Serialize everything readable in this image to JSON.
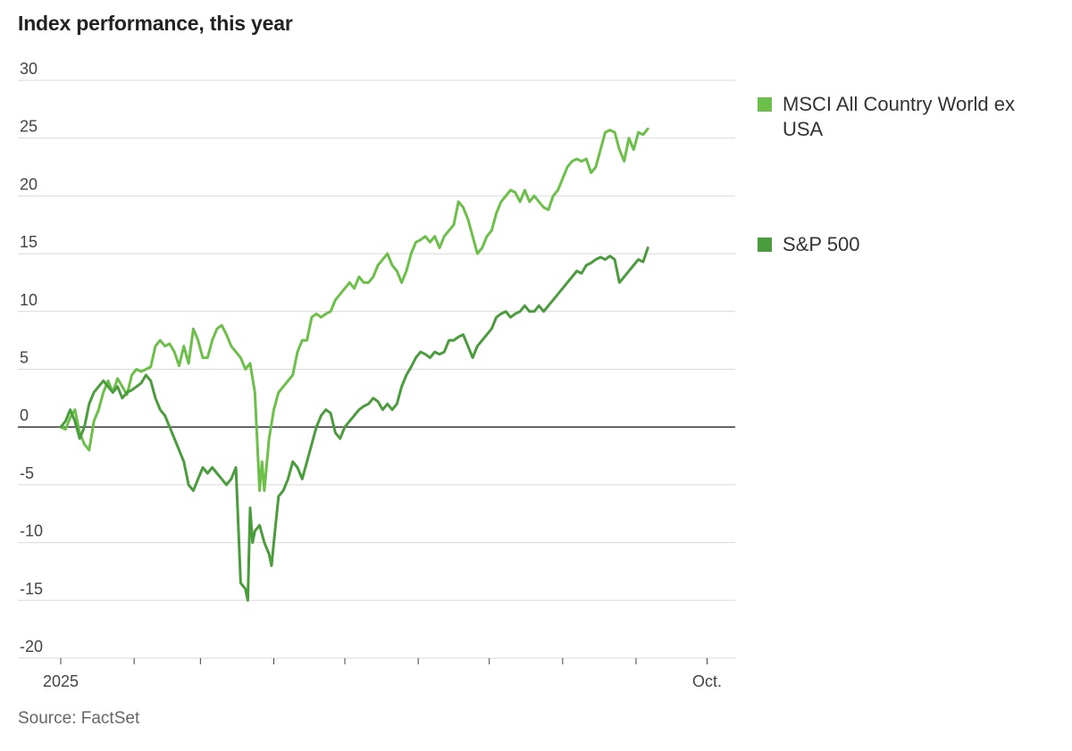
{
  "title": "Index performance, this year",
  "source": "Source: FactSet",
  "chart_data": {
    "type": "line",
    "title": "Index performance, this year",
    "xlabel": "",
    "ylabel": "",
    "unit": "percent change since start of 2025",
    "ylim": [
      -20,
      30
    ],
    "yticks": [
      30,
      25,
      20,
      15,
      10,
      5,
      0,
      -5,
      -10,
      -15,
      -20
    ],
    "xlim": [
      0,
      283
    ],
    "x_unit": "days since 2025-01-01",
    "xtick_labels": [
      {
        "x": 0,
        "label": "2025"
      },
      {
        "x": 273,
        "label": "Oct."
      }
    ],
    "month_ticks": [
      0,
      31,
      59,
      90,
      120,
      151,
      181,
      212,
      243,
      273
    ],
    "series": [
      {
        "name": "MSCI All Country World ex USA",
        "color": "#6cc04a",
        "points": [
          [
            0,
            0
          ],
          [
            2,
            -0.2
          ],
          [
            4,
            0.8
          ],
          [
            6,
            1.5
          ],
          [
            8,
            -0.5
          ],
          [
            10,
            -1.5
          ],
          [
            12,
            -2
          ],
          [
            14,
            0.5
          ],
          [
            16,
            1.5
          ],
          [
            18,
            3
          ],
          [
            20,
            4
          ],
          [
            22,
            3
          ],
          [
            24,
            4.2
          ],
          [
            26,
            3.5
          ],
          [
            28,
            2.8
          ],
          [
            30,
            4.5
          ],
          [
            32,
            5
          ],
          [
            34,
            4.8
          ],
          [
            36,
            5
          ],
          [
            38,
            5.2
          ],
          [
            40,
            7
          ],
          [
            42,
            7.5
          ],
          [
            44,
            7
          ],
          [
            46,
            7.2
          ],
          [
            48,
            6.5
          ],
          [
            50,
            5.3
          ],
          [
            52,
            7
          ],
          [
            54,
            5.5
          ],
          [
            56,
            8.5
          ],
          [
            58,
            7.5
          ],
          [
            60,
            6
          ],
          [
            62,
            6
          ],
          [
            64,
            7.5
          ],
          [
            66,
            8.5
          ],
          [
            68,
            8.8
          ],
          [
            70,
            8
          ],
          [
            72,
            7
          ],
          [
            74,
            6.5
          ],
          [
            76,
            6
          ],
          [
            78,
            5
          ],
          [
            80,
            5.5
          ],
          [
            82,
            3
          ],
          [
            84,
            -5.5
          ],
          [
            85,
            -3
          ],
          [
            86,
            -5.5
          ],
          [
            88,
            -1
          ],
          [
            90,
            1.5
          ],
          [
            92,
            3
          ],
          [
            94,
            3.5
          ],
          [
            96,
            4
          ],
          [
            98,
            4.5
          ],
          [
            100,
            6.5
          ],
          [
            102,
            7.5
          ],
          [
            104,
            7.5
          ],
          [
            106,
            9.5
          ],
          [
            108,
            9.8
          ],
          [
            110,
            9.5
          ],
          [
            112,
            9.8
          ],
          [
            114,
            10
          ],
          [
            116,
            11
          ],
          [
            118,
            11.5
          ],
          [
            120,
            12
          ],
          [
            122,
            12.5
          ],
          [
            124,
            12
          ],
          [
            126,
            13
          ],
          [
            128,
            12.5
          ],
          [
            130,
            12.5
          ],
          [
            132,
            13
          ],
          [
            134,
            14
          ],
          [
            136,
            14.5
          ],
          [
            138,
            15
          ],
          [
            140,
            14
          ],
          [
            142,
            13.5
          ],
          [
            144,
            12.5
          ],
          [
            146,
            13.5
          ],
          [
            148,
            15
          ],
          [
            150,
            16
          ],
          [
            152,
            16.2
          ],
          [
            154,
            16.5
          ],
          [
            156,
            16
          ],
          [
            158,
            16.5
          ],
          [
            160,
            15.5
          ],
          [
            162,
            16.5
          ],
          [
            164,
            17
          ],
          [
            166,
            17.5
          ],
          [
            168,
            19.5
          ],
          [
            170,
            19
          ],
          [
            172,
            18
          ],
          [
            174,
            16.5
          ],
          [
            176,
            15
          ],
          [
            178,
            15.5
          ],
          [
            180,
            16.5
          ],
          [
            182,
            17
          ],
          [
            184,
            18.5
          ],
          [
            186,
            19.5
          ],
          [
            188,
            20
          ],
          [
            190,
            20.5
          ],
          [
            192,
            20.3
          ],
          [
            194,
            19.5
          ],
          [
            196,
            20.5
          ],
          [
            198,
            19.5
          ],
          [
            200,
            20
          ],
          [
            202,
            19.5
          ],
          [
            204,
            19
          ],
          [
            206,
            18.8
          ],
          [
            208,
            20
          ],
          [
            210,
            20.5
          ],
          [
            212,
            21.5
          ],
          [
            214,
            22.5
          ],
          [
            216,
            23
          ],
          [
            218,
            23.2
          ],
          [
            220,
            23
          ],
          [
            222,
            23.2
          ],
          [
            224,
            22
          ],
          [
            226,
            22.5
          ],
          [
            228,
            24
          ],
          [
            230,
            25.5
          ],
          [
            232,
            25.7
          ],
          [
            234,
            25.5
          ],
          [
            236,
            24
          ],
          [
            238,
            23
          ],
          [
            240,
            25
          ],
          [
            242,
            24
          ],
          [
            244,
            25.5
          ],
          [
            246,
            25.3
          ],
          [
            248,
            25.8
          ]
        ]
      },
      {
        "name": "S&P 500",
        "color": "#4a9c3c",
        "points": [
          [
            0,
            0
          ],
          [
            2,
            0.5
          ],
          [
            4,
            1.5
          ],
          [
            6,
            0.5
          ],
          [
            8,
            -1
          ],
          [
            10,
            0
          ],
          [
            12,
            2
          ],
          [
            14,
            3
          ],
          [
            16,
            3.5
          ],
          [
            18,
            4
          ],
          [
            20,
            3.5
          ],
          [
            22,
            3
          ],
          [
            24,
            3.5
          ],
          [
            26,
            2.5
          ],
          [
            28,
            3
          ],
          [
            30,
            3.2
          ],
          [
            32,
            3.5
          ],
          [
            34,
            3.8
          ],
          [
            36,
            4.5
          ],
          [
            38,
            4
          ],
          [
            40,
            2.5
          ],
          [
            42,
            1.5
          ],
          [
            44,
            1
          ],
          [
            46,
            0
          ],
          [
            48,
            -1
          ],
          [
            50,
            -2
          ],
          [
            52,
            -3
          ],
          [
            54,
            -5
          ],
          [
            56,
            -5.5
          ],
          [
            58,
            -4.5
          ],
          [
            60,
            -3.5
          ],
          [
            62,
            -4
          ],
          [
            64,
            -3.5
          ],
          [
            66,
            -4
          ],
          [
            68,
            -4.5
          ],
          [
            70,
            -5
          ],
          [
            72,
            -4.5
          ],
          [
            74,
            -3.5
          ],
          [
            76,
            -13.5
          ],
          [
            78,
            -14
          ],
          [
            79,
            -15
          ],
          [
            80,
            -7
          ],
          [
            81,
            -10
          ],
          [
            82,
            -9
          ],
          [
            84,
            -8.5
          ],
          [
            86,
            -10
          ],
          [
            88,
            -11
          ],
          [
            89,
            -12
          ],
          [
            90,
            -10
          ],
          [
            92,
            -6
          ],
          [
            94,
            -5.5
          ],
          [
            96,
            -4.5
          ],
          [
            98,
            -3
          ],
          [
            100,
            -3.5
          ],
          [
            102,
            -4.5
          ],
          [
            104,
            -3
          ],
          [
            106,
            -1.5
          ],
          [
            108,
            0
          ],
          [
            110,
            1
          ],
          [
            112,
            1.5
          ],
          [
            114,
            1.2
          ],
          [
            116,
            -0.5
          ],
          [
            118,
            -1
          ],
          [
            120,
            0
          ],
          [
            122,
            0.5
          ],
          [
            124,
            1
          ],
          [
            126,
            1.5
          ],
          [
            128,
            1.8
          ],
          [
            130,
            2
          ],
          [
            132,
            2.5
          ],
          [
            134,
            2.2
          ],
          [
            136,
            1.5
          ],
          [
            138,
            2
          ],
          [
            140,
            1.5
          ],
          [
            142,
            2
          ],
          [
            144,
            3.5
          ],
          [
            146,
            4.5
          ],
          [
            148,
            5.2
          ],
          [
            150,
            6
          ],
          [
            152,
            6.5
          ],
          [
            154,
            6.3
          ],
          [
            156,
            6
          ],
          [
            158,
            6.5
          ],
          [
            160,
            6.3
          ],
          [
            162,
            6.5
          ],
          [
            164,
            7.5
          ],
          [
            166,
            7.5
          ],
          [
            168,
            7.8
          ],
          [
            170,
            8
          ],
          [
            172,
            7
          ],
          [
            174,
            6
          ],
          [
            176,
            7
          ],
          [
            178,
            7.5
          ],
          [
            180,
            8
          ],
          [
            182,
            8.5
          ],
          [
            184,
            9.5
          ],
          [
            186,
            9.8
          ],
          [
            188,
            10
          ],
          [
            190,
            9.5
          ],
          [
            192,
            9.8
          ],
          [
            194,
            10
          ],
          [
            196,
            10.5
          ],
          [
            198,
            10
          ],
          [
            200,
            10
          ],
          [
            202,
            10.5
          ],
          [
            204,
            10
          ],
          [
            206,
            10.5
          ],
          [
            208,
            11
          ],
          [
            210,
            11.5
          ],
          [
            212,
            12
          ],
          [
            214,
            12.5
          ],
          [
            216,
            13
          ],
          [
            218,
            13.5
          ],
          [
            220,
            13.3
          ],
          [
            222,
            14
          ],
          [
            224,
            14.2
          ],
          [
            226,
            14.5
          ],
          [
            228,
            14.7
          ],
          [
            230,
            14.5
          ],
          [
            232,
            14.8
          ],
          [
            234,
            14.5
          ],
          [
            236,
            12.5
          ],
          [
            238,
            13
          ],
          [
            240,
            13.5
          ],
          [
            242,
            14
          ],
          [
            244,
            14.5
          ],
          [
            246,
            14.3
          ],
          [
            248,
            15.5
          ]
        ]
      }
    ],
    "legend": [
      "MSCI All Country World ex USA",
      "S&P 500"
    ],
    "legend_placement": "right",
    "grid": true
  }
}
